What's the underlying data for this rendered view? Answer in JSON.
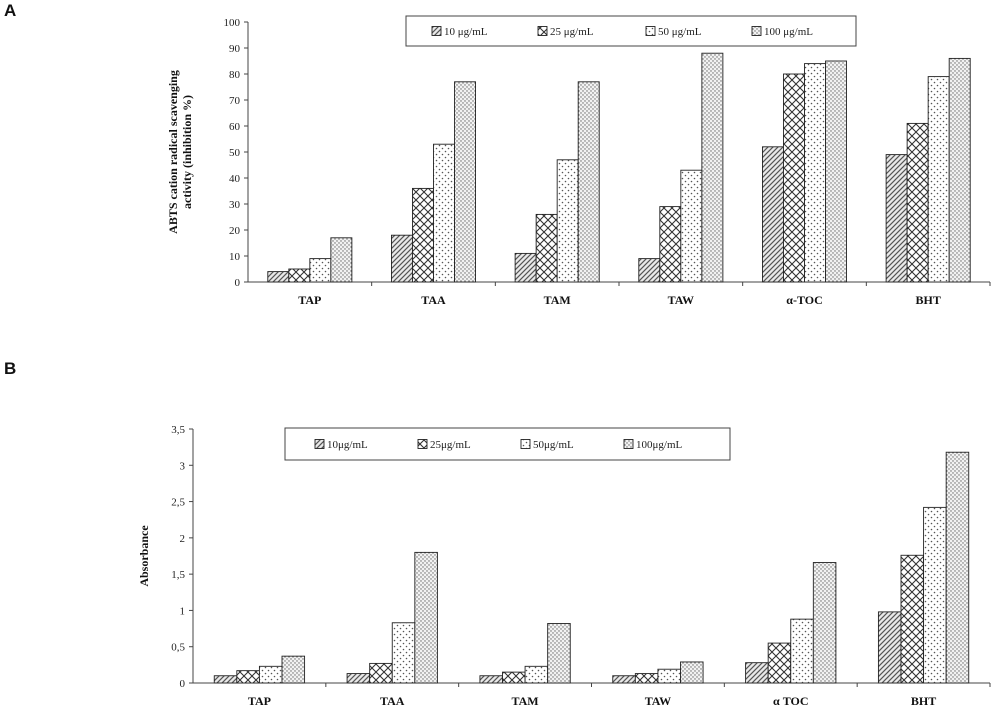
{
  "chart_data": [
    {
      "panel": "A",
      "type": "bar",
      "ylabel_lines": [
        "ABTS cation radical scavenging",
        "activity (inhibition %)"
      ],
      "ylim": [
        0,
        100
      ],
      "yticks": [
        0,
        10,
        20,
        30,
        40,
        50,
        60,
        70,
        80,
        90,
        100
      ],
      "ytick_labels": [
        "0",
        "10",
        "20",
        "30",
        "40",
        "50",
        "60",
        "70",
        "80",
        "90",
        "100"
      ],
      "categories": [
        "TAP",
        "TAA",
        "TAM",
        "TAW",
        "α-TOC",
        "BHT"
      ],
      "legend_placement": "top-right",
      "series": [
        {
          "name": "10 μg/mL",
          "values": [
            4,
            18,
            11,
            9,
            52,
            49
          ]
        },
        {
          "name": "25 μg/mL",
          "values": [
            5,
            36,
            26,
            29,
            80,
            61
          ]
        },
        {
          "name": "50 μg/mL",
          "values": [
            9,
            53,
            47,
            43,
            84,
            79
          ]
        },
        {
          "name": "100 μg/mL",
          "values": [
            17,
            77,
            77,
            88,
            85,
            86
          ]
        }
      ]
    },
    {
      "panel": "B",
      "type": "bar",
      "ylabel_lines": [
        "Absorbance"
      ],
      "ylim": [
        0,
        3.5
      ],
      "yticks": [
        0,
        0.5,
        1,
        1.5,
        2,
        2.5,
        3,
        3.5
      ],
      "ytick_labels": [
        "0",
        "0,5",
        "1",
        "1,5",
        "2",
        "2,5",
        "3",
        "3,5"
      ],
      "categories": [
        "TAP",
        "TAA",
        "TAM",
        "TAW",
        "α TOC",
        "BHT"
      ],
      "legend_placement": "top-center",
      "series": [
        {
          "name": "10μg/mL",
          "values": [
            0.1,
            0.13,
            0.1,
            0.1,
            0.28,
            0.98
          ]
        },
        {
          "name": "25μg/mL",
          "values": [
            0.17,
            0.27,
            0.15,
            0.13,
            0.55,
            1.76
          ]
        },
        {
          "name": "50μg/mL",
          "values": [
            0.23,
            0.83,
            0.23,
            0.19,
            0.88,
            2.42
          ]
        },
        {
          "name": "100μg/mL",
          "values": [
            0.37,
            1.8,
            0.82,
            0.29,
            1.66,
            3.18
          ]
        }
      ]
    }
  ]
}
